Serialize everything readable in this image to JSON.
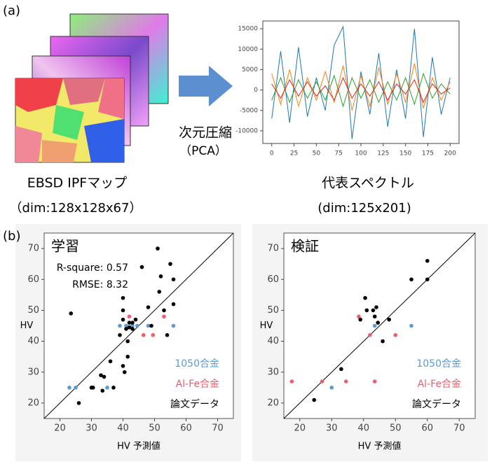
{
  "panel_a": {
    "label": "(a)",
    "input_label": "EBSD IPFマップ",
    "input_dim": "（dim:128x128x67）",
    "method": "次元圧縮",
    "method_sub": "（PCA）",
    "output_label": "代表スペクトル",
    "output_dim": "(dim:125x201)"
  },
  "panel_b_label": "(b)",
  "chart_data": [
    {
      "type": "line",
      "x": [
        0,
        10,
        20,
        30,
        40,
        50,
        60,
        70,
        80,
        90,
        100,
        110,
        120,
        130,
        140,
        150,
        160,
        170,
        180,
        190,
        200
      ],
      "series": [
        {
          "color": "#1f77b4",
          "values": [
            -7000,
            9500,
            -8000,
            10500,
            -6500,
            3000,
            -5000,
            11000,
            15500,
            -12000,
            4500,
            -6000,
            9000,
            -9000,
            5000,
            -7000,
            15000,
            -11500,
            8000,
            -6000,
            3000
          ]
        },
        {
          "color": "#ff7f0e",
          "values": [
            4000,
            -3500,
            5000,
            -4000,
            3000,
            -2500,
            4500,
            -3000,
            6000,
            -5000,
            3500,
            -4000,
            5500,
            -3500,
            4000,
            -3000,
            6500,
            -4500,
            3000,
            -2500,
            2000
          ]
        },
        {
          "color": "#2ca02c",
          "values": [
            -2500,
            3000,
            -3000,
            2500,
            -2000,
            2000,
            -2500,
            3500,
            -4000,
            3000,
            -2000,
            2500,
            -3000,
            2000,
            -2500,
            3000,
            -3500,
            4000,
            -2000,
            1500,
            -1000
          ]
        },
        {
          "color": "#d62728",
          "values": [
            1500,
            -2000,
            2500,
            -1500,
            2000,
            -1500,
            1000,
            -2500,
            3000,
            -2000,
            1500,
            -1500,
            2000,
            -2500,
            1500,
            -1000,
            2500,
            -3000,
            1500,
            -1000,
            500
          ]
        }
      ],
      "xlim": [
        -10,
        210
      ],
      "ylim": [
        -13100,
        16900
      ],
      "xticks": [
        0,
        25,
        50,
        75,
        100,
        125,
        150,
        175,
        200
      ],
      "yticks": [
        -10000,
        -5000,
        0,
        5000,
        10000,
        15000
      ]
    },
    {
      "type": "scatter",
      "title": "学習",
      "annotations": [
        "R-square: 0.57",
        "RMSE: 8.32"
      ],
      "xlabel": "HV 予測値",
      "ylabel": "HV",
      "xlim": [
        15,
        75
      ],
      "ylim": [
        15,
        75
      ],
      "xticks": [
        20,
        30,
        40,
        50,
        60,
        70
      ],
      "yticks": [
        20,
        30,
        40,
        50,
        60,
        70
      ],
      "series": [
        {
          "name": "1050合金",
          "color": "#5b9bd5",
          "x": [
            23,
            25,
            35,
            39,
            41,
            43,
            44.5,
            48,
            56
          ],
          "y": [
            25,
            25,
            25,
            45,
            45,
            45,
            45,
            45,
            45
          ]
        },
        {
          "name": "Al-Fe合金",
          "color": "#e8606e",
          "x": [
            42,
            46.5,
            49.5,
            53
          ],
          "y": [
            48,
            42,
            42,
            48
          ]
        },
        {
          "name": "論文データ",
          "color": "#000000",
          "x": [
            23.5,
            26,
            30,
            30.5,
            33,
            34,
            33.5,
            36,
            37,
            39,
            40,
            40,
            40,
            40,
            40.5,
            41.5,
            41,
            41.5,
            42,
            42,
            43,
            43,
            44,
            46,
            48,
            49,
            51,
            51.5,
            52,
            53,
            54,
            55,
            56,
            56
          ],
          "y": [
            49,
            20,
            25,
            25,
            29,
            28.5,
            24,
            33.5,
            25,
            42,
            47,
            50,
            54,
            32,
            30,
            35,
            44,
            40,
            44.5,
            46,
            44,
            46,
            47,
            64,
            51,
            45,
            70,
            56,
            61,
            50,
            42,
            65,
            60,
            52
          ]
        }
      ]
    },
    {
      "type": "scatter",
      "title": "検証",
      "xlabel": "HV 予測値",
      "ylabel": "HV",
      "xlim": [
        15,
        75
      ],
      "ylim": [
        15,
        75
      ],
      "xticks": [
        20,
        30,
        40,
        50,
        60,
        70
      ],
      "yticks": [
        20,
        30,
        40,
        50,
        60,
        70
      ],
      "series": [
        {
          "name": "1050合金",
          "color": "#5b9bd5",
          "x": [
            30,
            43.5,
            55
          ],
          "y": [
            25,
            45,
            45
          ]
        },
        {
          "name": "Al-Fe合金",
          "color": "#e8606e",
          "x": [
            17.5,
            27,
            34.5,
            38.5,
            42,
            43.5,
            50
          ],
          "y": [
            27,
            27,
            27,
            48,
            42,
            27,
            42
          ]
        },
        {
          "name": "論文データ",
          "color": "#000000",
          "x": [
            24.5,
            33,
            39,
            40.5,
            41,
            43,
            43.5,
            44,
            44.5,
            46,
            48,
            55,
            60,
            60
          ],
          "y": [
            21,
            31,
            47,
            54,
            50,
            50,
            48,
            51,
            46,
            40,
            47,
            60,
            66,
            60
          ]
        }
      ]
    }
  ]
}
